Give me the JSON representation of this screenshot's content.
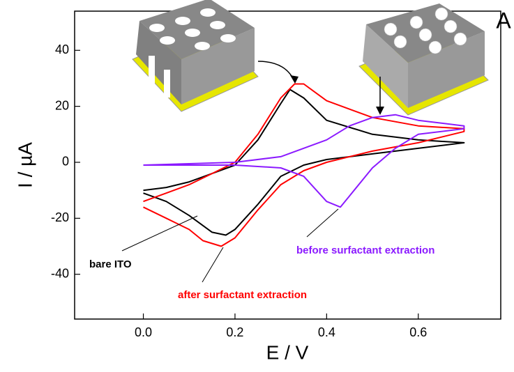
{
  "chart_data": {
    "type": "line",
    "panel_label": "A",
    "x_label": "E / V",
    "y_label": "I / µA",
    "xlim": [
      -0.15,
      0.78
    ],
    "ylim": [
      -56,
      54
    ],
    "xticks": [
      {
        "value": 0,
        "label": "0.0"
      },
      0.2,
      0.4,
      0.6
    ],
    "yticks": [
      -40,
      -20,
      0,
      20,
      40
    ],
    "series": [
      {
        "name": "bare ITO",
        "color": "#000000",
        "x": [
          0.0,
          0.05,
          0.1,
          0.15,
          0.2,
          0.25,
          0.3,
          0.32,
          0.35,
          0.4,
          0.5,
          0.6,
          0.7,
          0.7,
          0.6,
          0.5,
          0.4,
          0.35,
          0.3,
          0.25,
          0.2,
          0.18,
          0.15,
          0.1,
          0.05,
          0.0
        ],
        "values": [
          -10,
          -9,
          -7,
          -4,
          -1,
          8,
          21,
          26,
          23,
          15,
          10,
          8,
          7,
          7,
          5,
          3,
          1,
          -1,
          -5,
          -15,
          -24,
          -26,
          -25,
          -19,
          -14,
          -11
        ]
      },
      {
        "name": "after surfactant extraction",
        "color": "#ff0000",
        "x": [
          0.0,
          0.05,
          0.1,
          0.15,
          0.2,
          0.25,
          0.3,
          0.33,
          0.35,
          0.4,
          0.5,
          0.6,
          0.7,
          0.7,
          0.6,
          0.5,
          0.4,
          0.35,
          0.3,
          0.25,
          0.2,
          0.17,
          0.13,
          0.1,
          0.05,
          0.0
        ],
        "values": [
          -14,
          -11,
          -8,
          -4,
          0,
          10,
          23,
          28,
          28,
          22,
          16,
          13,
          12,
          11,
          7,
          4,
          0,
          -3,
          -8,
          -17,
          -27,
          -30,
          -28,
          -24,
          -20,
          -16
        ]
      },
      {
        "name": "before surfactant extraction",
        "color": "#8b1aff",
        "x": [
          0.0,
          0.1,
          0.2,
          0.3,
          0.4,
          0.45,
          0.5,
          0.55,
          0.6,
          0.7,
          0.7,
          0.6,
          0.55,
          0.5,
          0.45,
          0.43,
          0.4,
          0.35,
          0.3,
          0.2,
          0.1,
          0.0
        ],
        "values": [
          -1,
          -0.5,
          0,
          2,
          8,
          13,
          16,
          17,
          15,
          13,
          12,
          10,
          5,
          -2,
          -12,
          -16,
          -14,
          -5,
          -2,
          -1,
          -1,
          -1
        ]
      }
    ]
  }
}
